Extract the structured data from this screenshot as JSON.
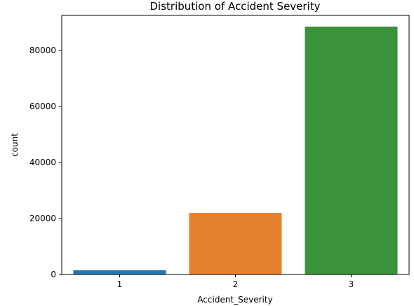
{
  "chart_data": {
    "type": "bar",
    "title": "Distribution of Accident Severity",
    "xlabel": "Accident_Severity",
    "ylabel": "count",
    "categories": [
      "1",
      "2",
      "3"
    ],
    "values": [
      1500,
      22000,
      88500
    ],
    "colors": [
      "#1f77b4",
      "#e6812f",
      "#3a923a"
    ],
    "ylim": [
      0,
      92500
    ],
    "yticks": [
      0,
      20000,
      40000,
      60000,
      80000
    ],
    "ytick_labels": [
      "0",
      "20000",
      "40000",
      "60000",
      "80000"
    ],
    "grid": false,
    "legend": "none"
  }
}
